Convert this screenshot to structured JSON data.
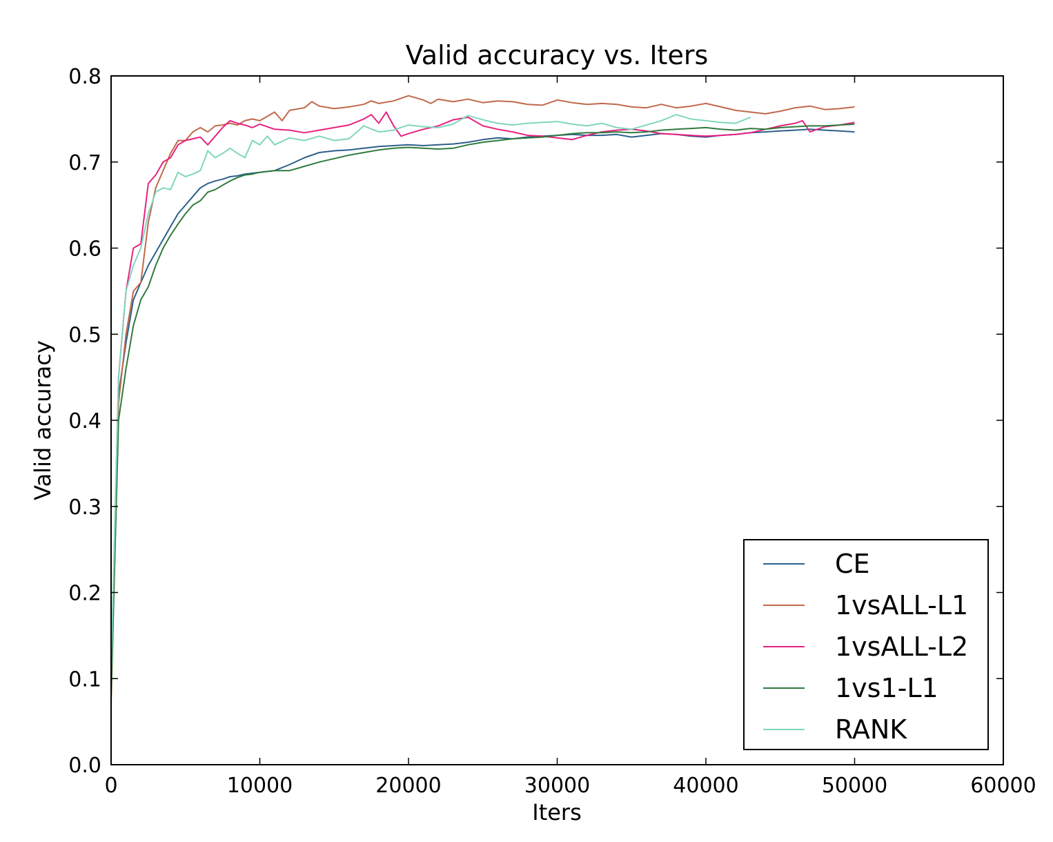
{
  "chart_data": {
    "type": "line",
    "title": "Valid accuracy vs. Iters",
    "xlabel": "Iters",
    "ylabel": "Valid accuracy",
    "xlim": [
      0,
      60000
    ],
    "ylim": [
      0.0,
      0.8
    ],
    "xticks": [
      0,
      10000,
      20000,
      30000,
      40000,
      50000,
      60000
    ],
    "xtick_labels": [
      "0",
      "10000",
      "20000",
      "30000",
      "40000",
      "50000",
      "60000"
    ],
    "yticks": [
      0.0,
      0.1,
      0.2,
      0.3,
      0.4,
      0.5,
      0.6,
      0.7,
      0.8
    ],
    "ytick_labels": [
      "0.0",
      "0.1",
      "0.2",
      "0.3",
      "0.4",
      "0.5",
      "0.6",
      "0.7",
      "0.8"
    ],
    "grid": false,
    "legend_position": "lower-right",
    "series": [
      {
        "name": "CE",
        "color": "#2c5f8a",
        "x": [
          0,
          500,
          1000,
          1500,
          2000,
          2500,
          3000,
          3500,
          4000,
          4500,
          5000,
          5500,
          6000,
          6500,
          7000,
          7500,
          8000,
          8500,
          9000,
          9500,
          10000,
          11000,
          12000,
          13000,
          14000,
          15000,
          16000,
          17000,
          18000,
          19000,
          20000,
          21000,
          22000,
          23000,
          24000,
          25000,
          26000,
          27000,
          28000,
          29000,
          30000,
          31000,
          32000,
          33000,
          34000,
          35000,
          36000,
          37000,
          38000,
          39000,
          40000,
          41000,
          42000,
          43000,
          44000,
          45000,
          46000,
          47000,
          48000,
          49000,
          50000
        ],
        "y": [
          0.09,
          0.43,
          0.49,
          0.54,
          0.56,
          0.58,
          0.595,
          0.61,
          0.625,
          0.64,
          0.65,
          0.66,
          0.67,
          0.675,
          0.678,
          0.68,
          0.683,
          0.684,
          0.686,
          0.687,
          0.688,
          0.69,
          0.697,
          0.705,
          0.711,
          0.713,
          0.714,
          0.716,
          0.718,
          0.719,
          0.72,
          0.719,
          0.72,
          0.721,
          0.723,
          0.726,
          0.728,
          0.727,
          0.729,
          0.73,
          0.731,
          0.732,
          0.731,
          0.731,
          0.732,
          0.729,
          0.731,
          0.733,
          0.732,
          0.73,
          0.729,
          0.731,
          0.732,
          0.734,
          0.735,
          0.736,
          0.737,
          0.738,
          0.737,
          0.736,
          0.735
        ]
      },
      {
        "name": "1vsALL-L1",
        "color": "#c0684a",
        "x": [
          0,
          500,
          1000,
          1500,
          2000,
          2500,
          3000,
          3500,
          4000,
          4500,
          5000,
          5500,
          6000,
          6500,
          7000,
          7500,
          8000,
          8500,
          9000,
          9500,
          10000,
          11000,
          11500,
          12000,
          13000,
          13500,
          14000,
          15000,
          16000,
          17000,
          17500,
          18000,
          19000,
          20000,
          21000,
          21500,
          22000,
          23000,
          24000,
          25000,
          26000,
          27000,
          28000,
          29000,
          30000,
          31000,
          32000,
          33000,
          34000,
          35000,
          36000,
          37000,
          38000,
          39000,
          40000,
          41000,
          42000,
          43000,
          44000,
          45000,
          46000,
          47000,
          48000,
          49000,
          50000
        ],
        "y": [
          0.07,
          0.42,
          0.5,
          0.55,
          0.56,
          0.63,
          0.67,
          0.69,
          0.71,
          0.725,
          0.725,
          0.735,
          0.74,
          0.735,
          0.742,
          0.743,
          0.745,
          0.743,
          0.748,
          0.75,
          0.748,
          0.758,
          0.748,
          0.76,
          0.763,
          0.77,
          0.765,
          0.762,
          0.764,
          0.767,
          0.771,
          0.768,
          0.771,
          0.777,
          0.772,
          0.768,
          0.773,
          0.77,
          0.773,
          0.769,
          0.771,
          0.77,
          0.767,
          0.766,
          0.772,
          0.769,
          0.767,
          0.768,
          0.767,
          0.764,
          0.763,
          0.767,
          0.763,
          0.765,
          0.768,
          0.764,
          0.76,
          0.758,
          0.756,
          0.759,
          0.763,
          0.765,
          0.761,
          0.762,
          0.764
        ]
      },
      {
        "name": "1vsALL-L2",
        "color": "#e8217e",
        "x": [
          0,
          500,
          1000,
          1500,
          2000,
          2500,
          3000,
          3500,
          4000,
          4500,
          5000,
          5500,
          6000,
          6500,
          7000,
          7500,
          8000,
          8500,
          9000,
          9500,
          10000,
          11000,
          12000,
          13000,
          14000,
          15000,
          16000,
          17000,
          17500,
          18000,
          18500,
          19000,
          19500,
          20000,
          21000,
          22000,
          23000,
          24000,
          25000,
          26000,
          27000,
          28000,
          29000,
          30000,
          31000,
          32000,
          33000,
          34000,
          35000,
          36000,
          37000,
          38000,
          39000,
          40000,
          41000,
          42000,
          43000,
          44000,
          45000,
          46000,
          46500,
          47000,
          48000,
          49000,
          50000
        ],
        "y": [
          0.1,
          0.45,
          0.55,
          0.6,
          0.605,
          0.675,
          0.685,
          0.7,
          0.705,
          0.72,
          0.725,
          0.727,
          0.729,
          0.72,
          0.73,
          0.74,
          0.748,
          0.745,
          0.743,
          0.74,
          0.744,
          0.738,
          0.737,
          0.734,
          0.737,
          0.74,
          0.743,
          0.75,
          0.755,
          0.745,
          0.758,
          0.742,
          0.73,
          0.733,
          0.738,
          0.742,
          0.749,
          0.752,
          0.742,
          0.738,
          0.735,
          0.731,
          0.73,
          0.728,
          0.726,
          0.731,
          0.735,
          0.737,
          0.738,
          0.736,
          0.733,
          0.732,
          0.731,
          0.73,
          0.731,
          0.732,
          0.734,
          0.738,
          0.742,
          0.745,
          0.748,
          0.735,
          0.741,
          0.743,
          0.746
        ]
      },
      {
        "name": "1vs1-L1",
        "color": "#2e7a3c",
        "x": [
          0,
          500,
          1000,
          1500,
          2000,
          2500,
          3000,
          3500,
          4000,
          4500,
          5000,
          5500,
          6000,
          6500,
          7000,
          7500,
          8000,
          8500,
          9000,
          9500,
          10000,
          11000,
          12000,
          13000,
          14000,
          15000,
          16000,
          17000,
          18000,
          19000,
          20000,
          21000,
          22000,
          23000,
          24000,
          25000,
          26000,
          27000,
          28000,
          29000,
          30000,
          31000,
          32000,
          33000,
          34000,
          35000,
          36000,
          37000,
          38000,
          39000,
          40000,
          41000,
          42000,
          43000,
          44000,
          45000,
          46000,
          47000,
          48000,
          49000,
          50000
        ],
        "y": [
          0.08,
          0.4,
          0.46,
          0.51,
          0.54,
          0.555,
          0.58,
          0.6,
          0.615,
          0.628,
          0.64,
          0.65,
          0.655,
          0.665,
          0.668,
          0.673,
          0.678,
          0.682,
          0.685,
          0.686,
          0.688,
          0.69,
          0.69,
          0.695,
          0.7,
          0.704,
          0.708,
          0.711,
          0.714,
          0.716,
          0.717,
          0.716,
          0.715,
          0.716,
          0.72,
          0.723,
          0.725,
          0.727,
          0.728,
          0.729,
          0.731,
          0.733,
          0.734,
          0.734,
          0.735,
          0.734,
          0.735,
          0.737,
          0.738,
          0.739,
          0.74,
          0.738,
          0.737,
          0.739,
          0.738,
          0.74,
          0.741,
          0.742,
          0.742,
          0.743,
          0.744
        ]
      },
      {
        "name": "RANK",
        "color": "#7fd6be",
        "x": [
          0,
          500,
          1000,
          1500,
          2000,
          2500,
          3000,
          3500,
          4000,
          4500,
          5000,
          5500,
          6000,
          6500,
          7000,
          7500,
          8000,
          8500,
          9000,
          9500,
          10000,
          10500,
          11000,
          12000,
          13000,
          14000,
          15000,
          16000,
          17000,
          18000,
          19000,
          20000,
          21000,
          22000,
          23000,
          24000,
          25000,
          26000,
          27000,
          28000,
          29000,
          30000,
          31000,
          32000,
          33000,
          34000,
          35000,
          36000,
          37000,
          38000,
          39000,
          40000,
          41000,
          42000,
          43000
        ],
        "y": [
          0.11,
          0.45,
          0.55,
          0.58,
          0.6,
          0.64,
          0.665,
          0.67,
          0.668,
          0.688,
          0.683,
          0.686,
          0.69,
          0.713,
          0.705,
          0.71,
          0.716,
          0.71,
          0.705,
          0.725,
          0.72,
          0.73,
          0.72,
          0.728,
          0.725,
          0.73,
          0.725,
          0.727,
          0.742,
          0.735,
          0.737,
          0.743,
          0.741,
          0.74,
          0.744,
          0.754,
          0.749,
          0.745,
          0.743,
          0.745,
          0.746,
          0.747,
          0.744,
          0.742,
          0.745,
          0.74,
          0.738,
          0.743,
          0.748,
          0.755,
          0.75,
          0.748,
          0.746,
          0.745,
          0.752
        ]
      }
    ]
  }
}
